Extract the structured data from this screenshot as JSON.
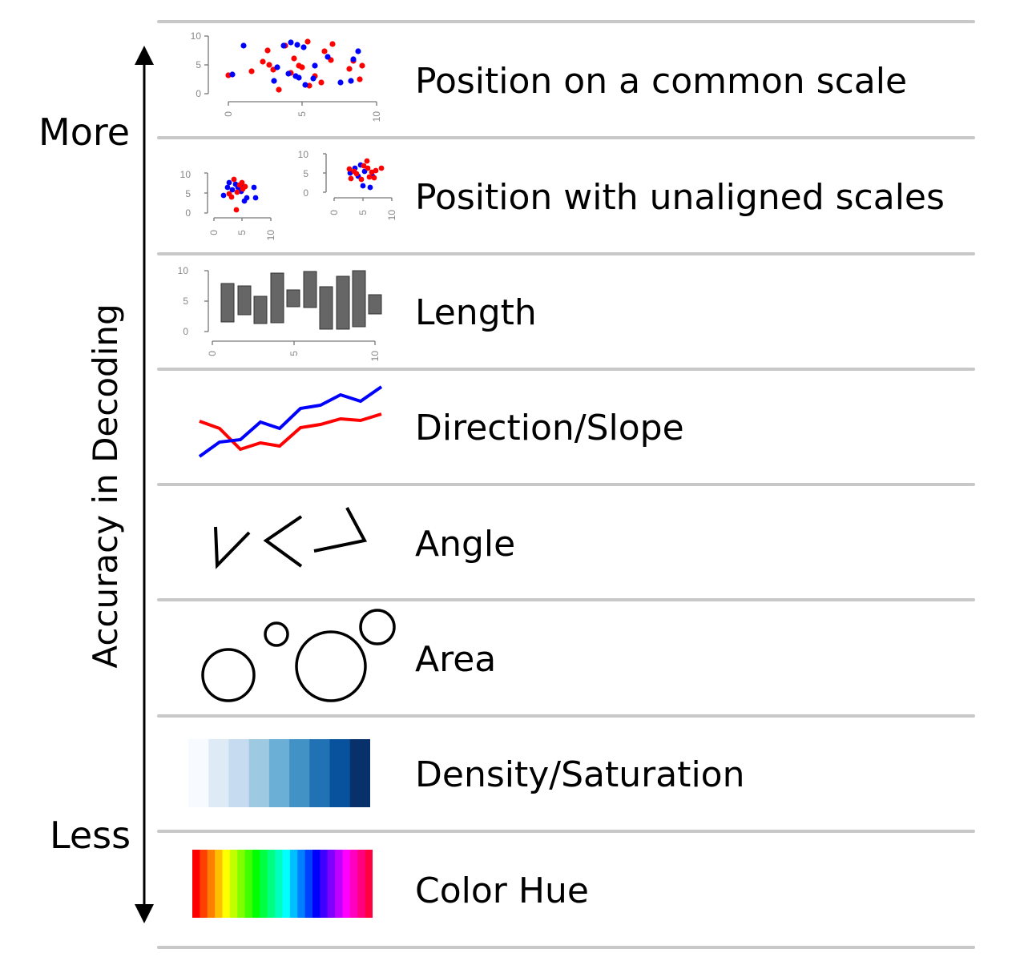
{
  "axis": {
    "label": "Accuracy in Decoding",
    "top_label": "More",
    "bottom_label": "Less"
  },
  "rows": [
    {
      "label": "Position on a common scale",
      "icon": "scatter-plot-icon"
    },
    {
      "label": "Position with unaligned scales",
      "icon": "two-scatter-plots-icon"
    },
    {
      "label": "Length",
      "icon": "floating-bar-chart-icon"
    },
    {
      "label": "Direction/Slope",
      "icon": "line-chart-icon"
    },
    {
      "label": "Angle",
      "icon": "angles-icon"
    },
    {
      "label": "Area",
      "icon": "circles-icon"
    },
    {
      "label": "Density/Saturation",
      "icon": "blue-gradient-icon"
    },
    {
      "label": "Color Hue",
      "icon": "rainbow-gradient-icon"
    }
  ],
  "mini_axis_ticks": {
    "y": [
      "0",
      "5",
      "10"
    ],
    "x": [
      "0",
      "5",
      "10"
    ]
  },
  "colors": {
    "series_a": "#ff0000",
    "series_b": "#0000ff",
    "bars": "#666666",
    "separator": "#c8c8c8",
    "saturation": [
      "#f7fbff",
      "#deebf7",
      "#c6dbef",
      "#9ecae1",
      "#6baed6",
      "#4292c6",
      "#2171b5",
      "#08519c",
      "#08306b"
    ],
    "hue": [
      "#ff0000",
      "#ff4000",
      "#ff8000",
      "#ffbf00",
      "#ffff00",
      "#bfff00",
      "#80ff00",
      "#40ff00",
      "#00ff00",
      "#00ff40",
      "#00ff80",
      "#00ffbf",
      "#00ffff",
      "#00bfff",
      "#0080ff",
      "#0040ff",
      "#0000ff",
      "#4000ff",
      "#8000ff",
      "#bf00ff",
      "#ff00ff",
      "#ff00bf",
      "#ff0080",
      "#ff0040"
    ]
  }
}
